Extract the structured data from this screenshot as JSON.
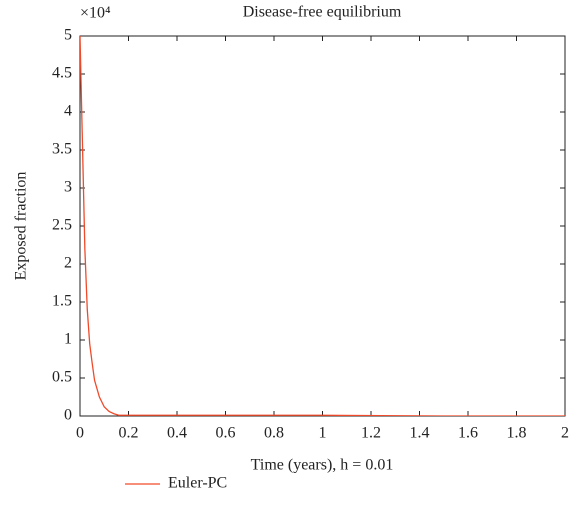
{
  "chart_data": {
    "type": "line",
    "title": "Disease-free equilibrium",
    "x_label": "Time (years), h = 0.01",
    "y_label": "Exposed fraction",
    "y_multiplier": "×10⁴",
    "x": [
      0,
      0.01,
      0.02,
      0.03,
      0.04,
      0.05,
      0.06,
      0.08,
      0.1,
      0.12,
      0.14,
      0.16,
      0.2,
      0.5,
      1,
      1.5,
      2
    ],
    "series": [
      {
        "name": "Euler-PC",
        "color": "#f04a2a",
        "values": [
          5,
          3.6,
          2.2,
          1.4,
          0.95,
          0.7,
          0.47,
          0.25,
          0.12,
          0.06,
          0.03,
          0.01,
          0.01,
          0.01,
          0.01,
          0,
          0
        ]
      }
    ],
    "xlim": [
      0,
      2
    ],
    "xticks": [
      0,
      0.2,
      0.4,
      0.6,
      0.8,
      1,
      1.2,
      1.4,
      1.6,
      1.8,
      2
    ],
    "ylim": [
      0,
      5
    ],
    "yticks": [
      0,
      0.5,
      1,
      1.5,
      2,
      2.5,
      3,
      3.5,
      4,
      4.5,
      5
    ],
    "legend": "bottom-left"
  }
}
